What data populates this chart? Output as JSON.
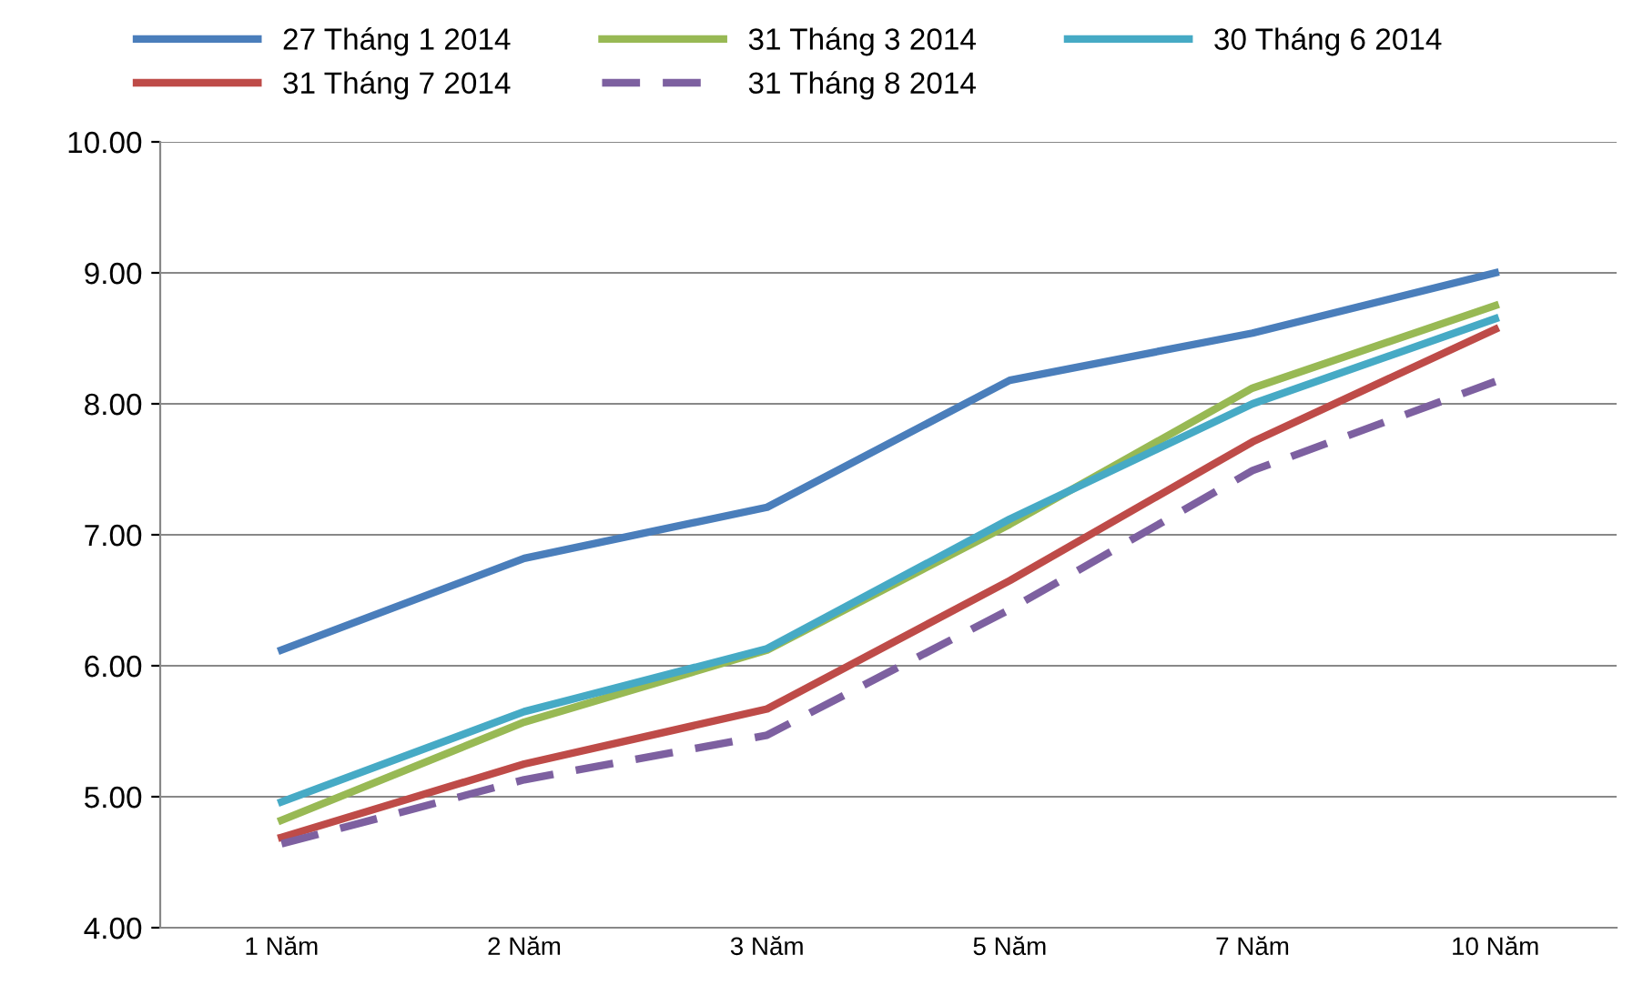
{
  "chart_data": {
    "type": "line",
    "categories": [
      "1 Năm",
      "2 Năm",
      "3 Năm",
      "5 Năm",
      "7 Năm",
      "10 Năm"
    ],
    "series": [
      {
        "name": "27 Tháng 1 2014",
        "color": "#4a7ebb",
        "values": [
          6.12,
          6.82,
          7.21,
          8.18,
          8.54,
          9.0
        ]
      },
      {
        "name": "31 Tháng 3 2014",
        "color": "#98b954",
        "values": [
          4.82,
          5.57,
          6.12,
          7.08,
          8.12,
          8.75
        ]
      },
      {
        "name": "30 Tháng 6 2014",
        "color": "#46aac5",
        "values": [
          4.96,
          5.65,
          6.13,
          7.12,
          8.0,
          8.65
        ]
      },
      {
        "name": "31 Tháng 7 2014",
        "color": "#be4b48",
        "values": [
          4.69,
          5.25,
          5.67,
          6.65,
          7.71,
          8.57
        ]
      },
      {
        "name": "31 Tháng 8 2014",
        "color": "#7d60a0",
        "values": [
          4.64,
          5.13,
          5.47,
          6.43,
          7.49,
          8.17
        ],
        "line_style": "dashed"
      }
    ],
    "ylim": [
      4,
      10
    ],
    "yticks": [
      {
        "value": 4,
        "label": "4.00"
      },
      {
        "value": 5,
        "label": "5.00"
      },
      {
        "value": 6,
        "label": "6.00"
      },
      {
        "value": 7,
        "label": "7.00"
      },
      {
        "value": 8,
        "label": "8.00"
      },
      {
        "value": 9,
        "label": "9.00"
      },
      {
        "value": 10,
        "label": "10.00"
      }
    ],
    "grid": "y",
    "legend": "top",
    "marker": "none"
  }
}
